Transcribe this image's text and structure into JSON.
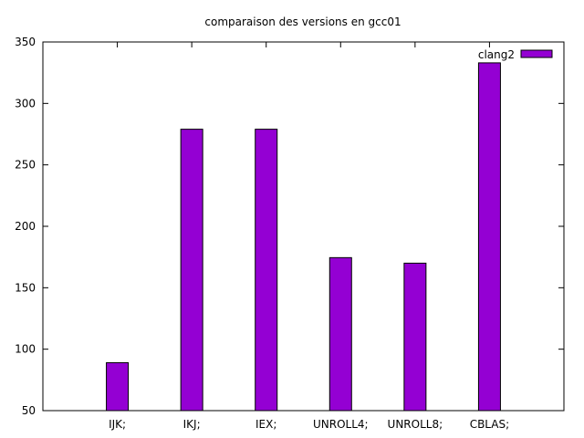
{
  "chart_data": {
    "type": "bar",
    "title": "comparaison des versions en  gcc01",
    "xlabel": "",
    "ylabel": "",
    "categories": [
      "IJK;",
      "IKJ;",
      "IEX;",
      "UNROLL4;",
      "UNROLL8;",
      "CBLAS;"
    ],
    "series": [
      {
        "name": "clang2",
        "values": [
          89,
          279,
          279,
          174.5,
          170,
          333
        ],
        "color": "#9400d3"
      }
    ],
    "ylim": [
      50,
      350
    ],
    "yticks": [
      50,
      100,
      150,
      200,
      250,
      300,
      350
    ],
    "grid": false,
    "legend_position": "top-right"
  }
}
